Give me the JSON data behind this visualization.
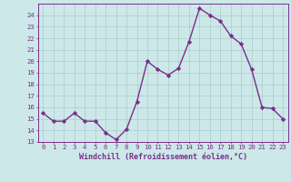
{
  "x": [
    0,
    1,
    2,
    3,
    4,
    5,
    6,
    7,
    8,
    9,
    10,
    11,
    12,
    13,
    14,
    15,
    16,
    17,
    18,
    19,
    20,
    21,
    22,
    23
  ],
  "y": [
    15.5,
    14.8,
    14.8,
    15.5,
    14.8,
    14.8,
    13.8,
    13.2,
    14.1,
    16.5,
    20.0,
    19.3,
    18.8,
    19.4,
    21.7,
    24.6,
    24.0,
    23.5,
    22.2,
    21.5,
    19.3,
    16.0,
    15.9,
    15.0
  ],
  "line_color": "#7b2d8b",
  "marker": "D",
  "marker_size": 2.2,
  "bg_color": "#cce8e8",
  "grid_color": "#aacccc",
  "xlabel": "Windchill (Refroidissement éolien,°C)",
  "ylim": [
    13,
    25
  ],
  "xlim": [
    -0.5,
    23.5
  ],
  "yticks": [
    13,
    14,
    15,
    16,
    17,
    18,
    19,
    20,
    21,
    22,
    23,
    24
  ],
  "xticks": [
    0,
    1,
    2,
    3,
    4,
    5,
    6,
    7,
    8,
    9,
    10,
    11,
    12,
    13,
    14,
    15,
    16,
    17,
    18,
    19,
    20,
    21,
    22,
    23
  ],
  "tick_color": "#7b2d8b",
  "label_color": "#7b2d8b",
  "axis_color": "#7b2d8b",
  "xlabel_fontsize": 6.0,
  "tick_fontsize": 5.2,
  "linewidth": 1.0
}
